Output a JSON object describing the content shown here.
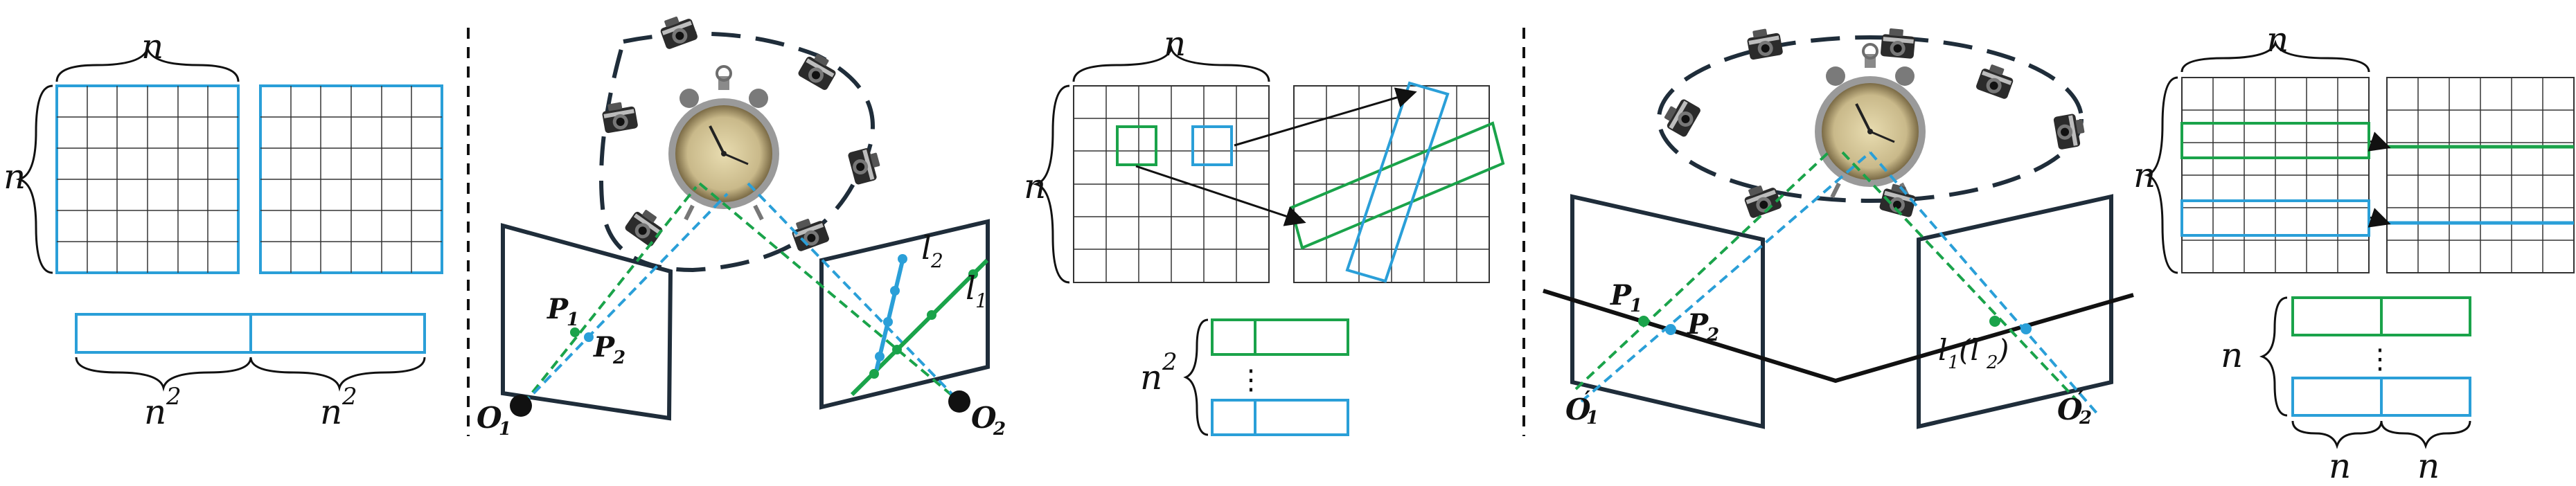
{
  "colors": {
    "green": "#1aa34a",
    "blue": "#2a9fd8",
    "dark": "#1f2d3a",
    "black": "#111111"
  },
  "icons": [
    "alarm-clock-icon",
    "camera-icon"
  ],
  "panel1": {
    "n_top": "n",
    "n_left": "n",
    "n_sq_left": "n",
    "n_sq_right": "n",
    "sup": "2"
  },
  "panel2": {
    "P1": "P",
    "P1_sub": "1",
    "P2": "P",
    "P2_sub": "2",
    "O1": "O",
    "O1_sub": "1",
    "O2": "O",
    "O2_sub": "2",
    "l1": "l",
    "l1_sub": "1",
    "l2": "l",
    "l2_sub": "2"
  },
  "panel3": {
    "n_top": "n",
    "n_left": "n",
    "n_sq": "n",
    "sup": "2",
    "dots": "⋮"
  },
  "panel4": {
    "P1": "P",
    "P1_sub": "1",
    "P2": "P",
    "P2_sub": "2",
    "O1": "O",
    "O1_sub": "1",
    "O1_prime": "′",
    "O2": "O",
    "O2_sub": "2",
    "O2_prime": "′",
    "line_label": "l",
    "line_label_sub1": "1",
    "line_label_paren_open": "(l",
    "line_label_sub2": "2",
    "line_label_paren_close": ")"
  },
  "panel5": {
    "n_top": "n",
    "n_left": "n",
    "n_mid": "n",
    "n_bottom_left": "n",
    "n_bottom_right": "n",
    "dots": "⋮"
  }
}
